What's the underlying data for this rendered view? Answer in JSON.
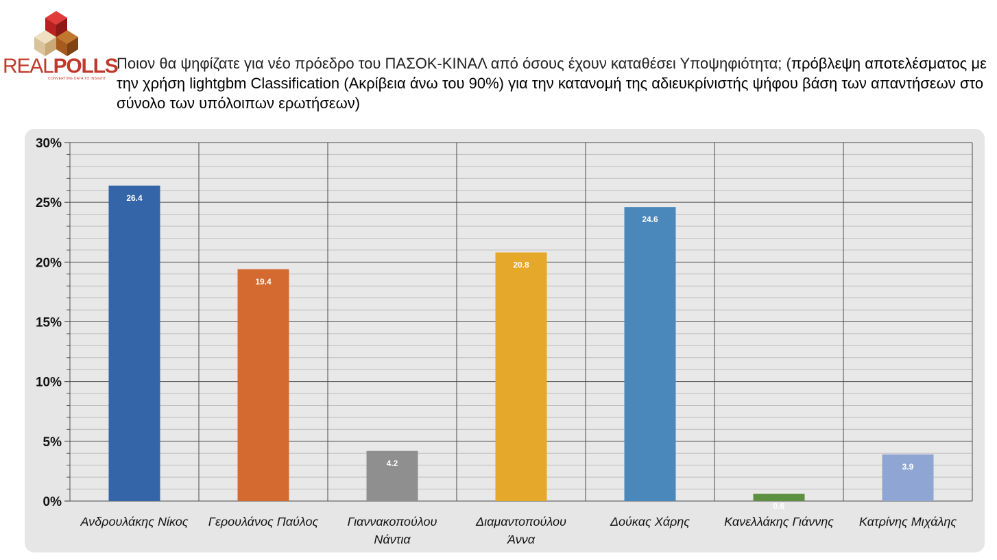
{
  "logo": {
    "text_a": "REAL",
    "text_b": "POLLS",
    "tagline": "CONVERTING DATA TO INSIGHT"
  },
  "title": {
    "part1": "Ποιον θα ψηφίζατε για νέο πρόεδρο του ΠΑΣΟΚ-ΚΙΝΑΛ από όσους έχουν καταθέσει Υποψηφιότητα; (",
    "part2": "πρόβλεψη αποτελέσματος με την χρήση lightgbm Classification (Ακρίβεια άνω του 90%) για την κατανομή της αδιευκρίνιστής ψήφου βάση των απαντήσεων στο σύνολο των υπόλοιπων ερωτήσεων)"
  },
  "chart_data": {
    "type": "bar",
    "categories": [
      [
        "Ανδρουλάκης Νίκος"
      ],
      [
        "Γερουλάνος Παύλος"
      ],
      [
        "Γιαννακοπούλου",
        "Νάντια"
      ],
      [
        "Διαμαντοπούλου",
        "Άννα"
      ],
      [
        "Δούκας Χάρης"
      ],
      [
        "Κανελλάκης Γιάννης"
      ],
      [
        "Κατρίνης Μιχάλης"
      ]
    ],
    "values": [
      26.4,
      19.4,
      4.2,
      20.8,
      24.6,
      0.6,
      3.9
    ],
    "data_labels": [
      "26.4",
      "19.4",
      "4.2",
      "20.8",
      "24.6",
      "0.6",
      "3.9"
    ],
    "colors": [
      "#3465a8",
      "#d46a2f",
      "#8f8f8f",
      "#e5a82a",
      "#4a88bb",
      "#5b9140",
      "#8fa6d4"
    ],
    "ylim": [
      0,
      30
    ],
    "yticks": [
      0,
      5,
      10,
      15,
      20,
      25,
      30
    ],
    "ytick_labels": [
      "0%",
      "5%",
      "10%",
      "15%",
      "20%",
      "25%",
      "30%"
    ],
    "grid": true,
    "title": "",
    "xlabel": "",
    "ylabel": ""
  }
}
